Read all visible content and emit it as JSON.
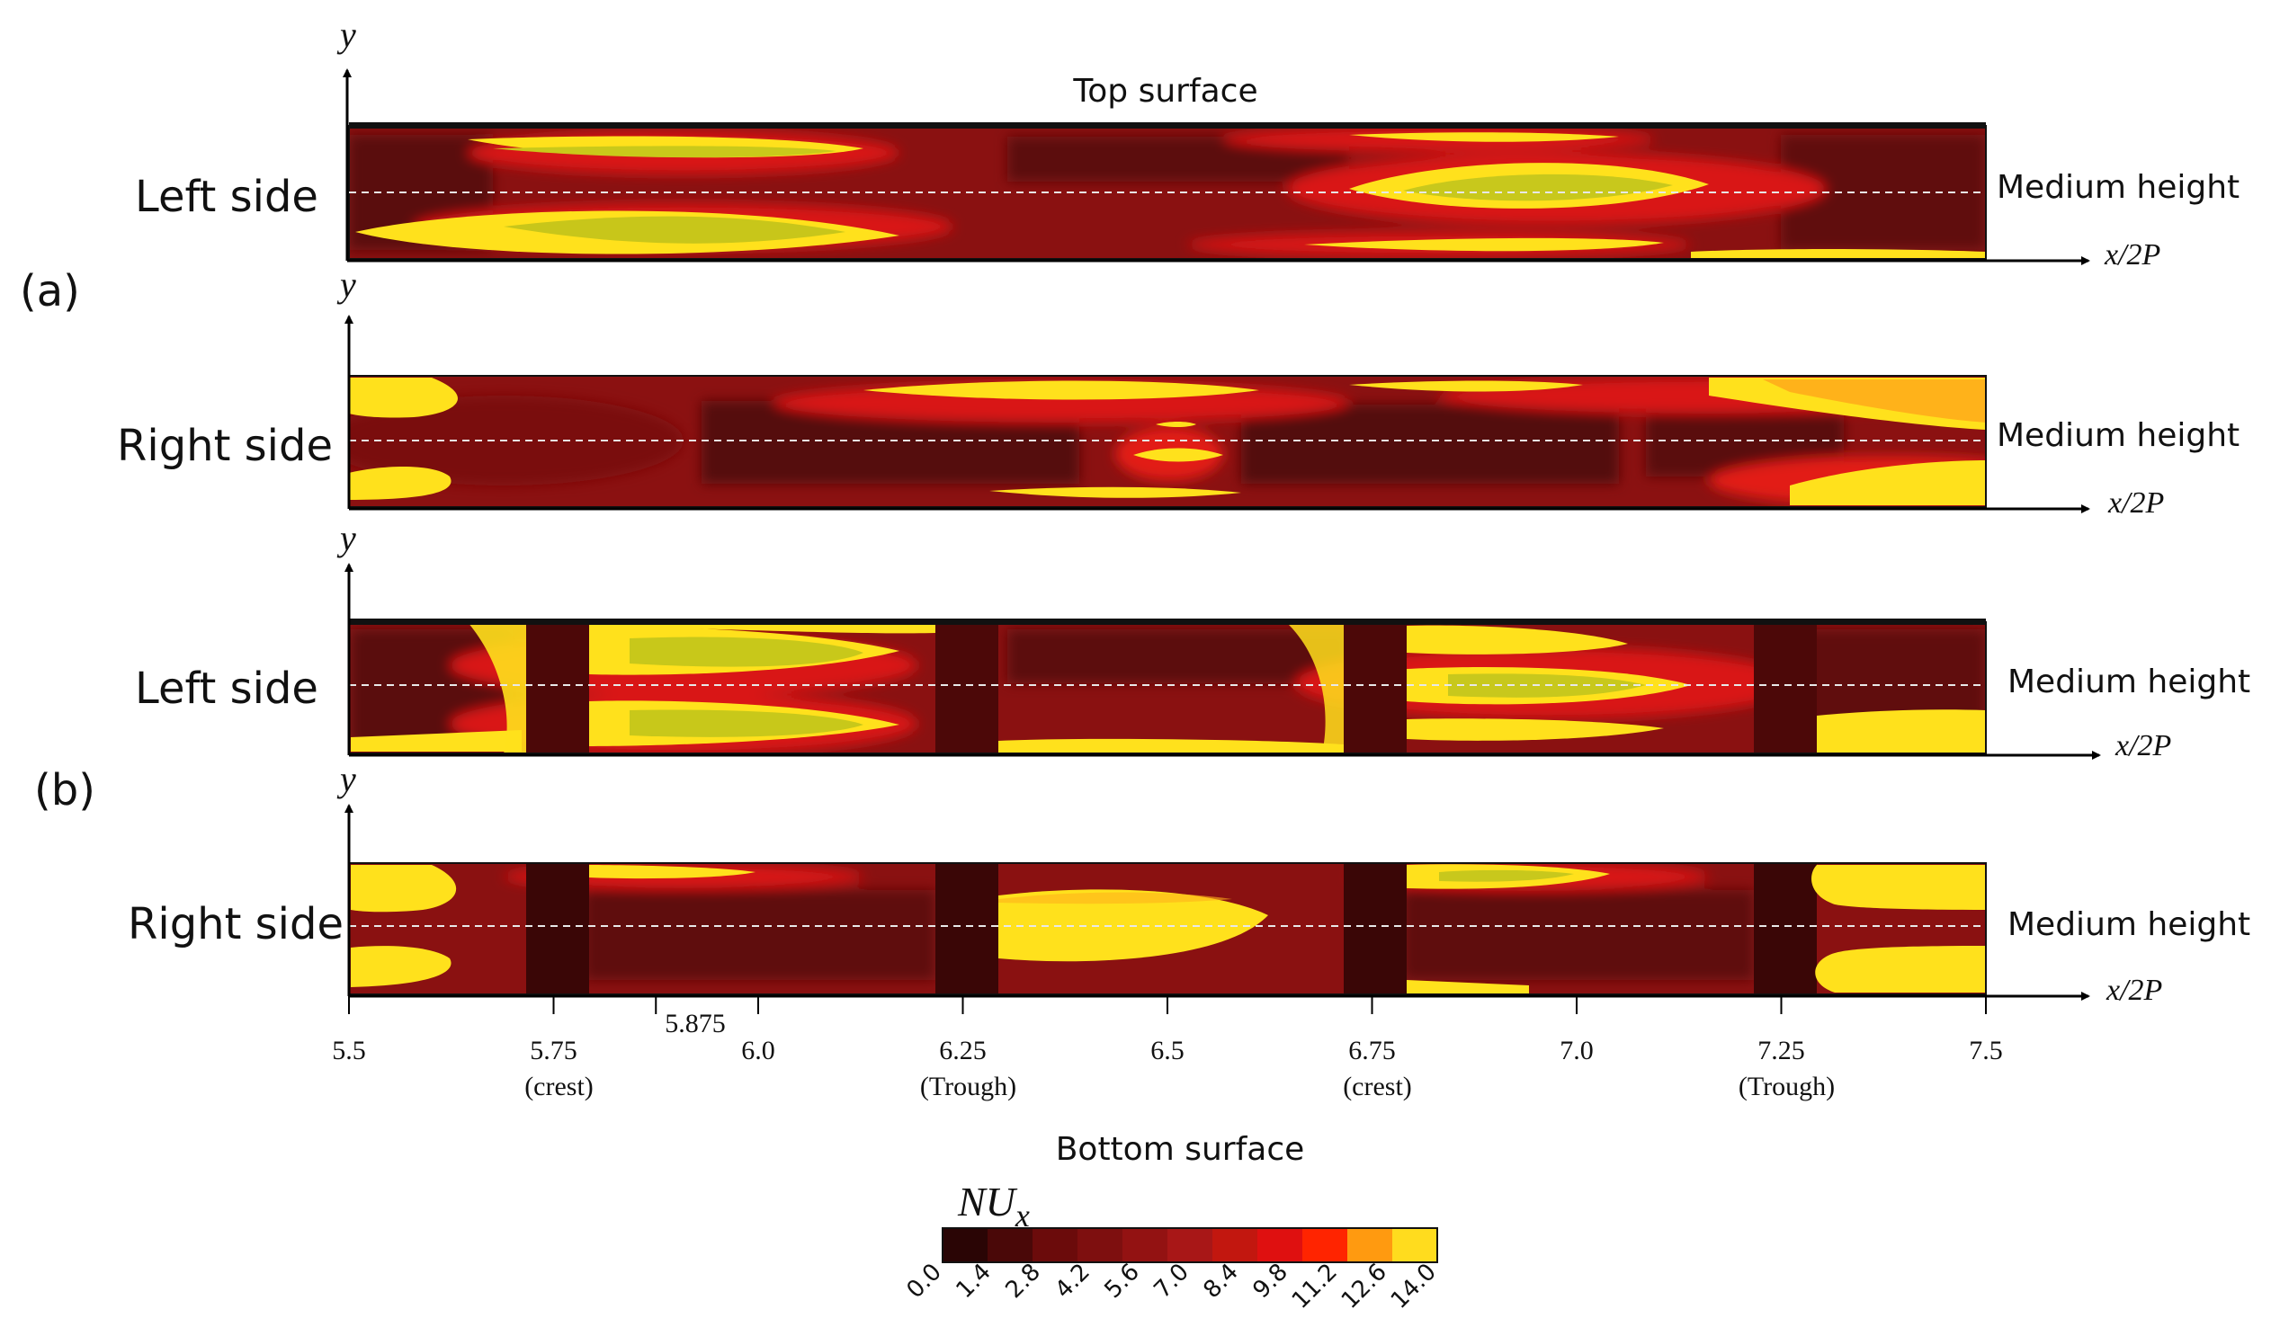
{
  "figure": {
    "top_surface_label": "Top surface",
    "bottom_surface_label": "Bottom surface",
    "axis_y_label": "y",
    "axis_x_label": "x/2P",
    "midline_label": "Medium height",
    "group_labels": [
      "(a)",
      "(b)"
    ]
  },
  "chart_data": {
    "type": "heatmap",
    "colorbar": {
      "title": "NU",
      "title_subscript": "x",
      "ticks": [
        "0.0",
        "1.4",
        "2.8",
        "4.2",
        "5.6",
        "7.0",
        "8.4",
        "9.8",
        "11.2",
        "12.6",
        "14.0"
      ],
      "colors": [
        "#2a0505",
        "#4a0808",
        "#6b0b0b",
        "#7e0f0f",
        "#931212",
        "#a81717",
        "#c2170f",
        "#df1010",
        "#ff2400",
        "#ff9a10",
        "#ffdc1e"
      ]
    },
    "x_ticks": [
      {
        "value": 5.5,
        "label": "5.5",
        "note": ""
      },
      {
        "value": 5.75,
        "label": "5.75",
        "note": "(crest)"
      },
      {
        "value": 5.875,
        "label": "5.875",
        "note": ""
      },
      {
        "value": 6.0,
        "label": "6.0",
        "note": ""
      },
      {
        "value": 6.25,
        "label": "6.25",
        "note": "(Trough)"
      },
      {
        "value": 6.5,
        "label": "6.5",
        "note": ""
      },
      {
        "value": 6.75,
        "label": "6.75",
        "note": "(crest)"
      },
      {
        "value": 7.0,
        "label": "7.0",
        "note": ""
      },
      {
        "value": 7.25,
        "label": "7.25",
        "note": "(Trough)"
      },
      {
        "value": 7.5,
        "label": "7.5",
        "note": ""
      }
    ],
    "xlim": [
      5.5,
      7.5
    ],
    "panels": [
      {
        "group": "a",
        "label": "Left side"
      },
      {
        "group": "a",
        "label": "Right side"
      },
      {
        "group": "b",
        "label": "Left side"
      },
      {
        "group": "b",
        "label": "Right side"
      }
    ]
  }
}
